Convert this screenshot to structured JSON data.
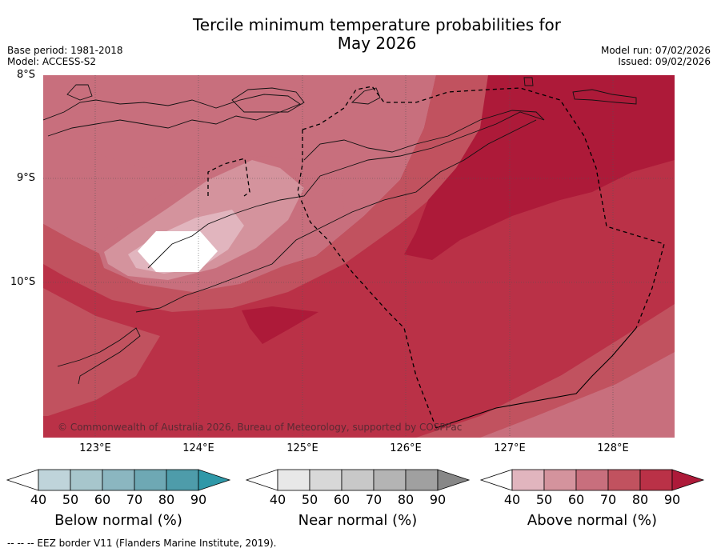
{
  "title_line1": "Tercile minimum temperature probabilities for",
  "title_line2": "May 2026",
  "base_period": "Base period: 1981-2018",
  "model": "Model: ACCESS-S2",
  "model_run": "Model run: 07/02/2026",
  "issued": "Issued: 09/02/2026",
  "lat_labels": [
    "8°S",
    "9°S",
    "10°S"
  ],
  "lon_labels": [
    "123°E",
    "124°E",
    "125°E",
    "126°E",
    "127°E",
    "128°E"
  ],
  "copyright": "© Commonwealth of Australia 2026, Bureau of Meteorology, supported by COSPPac",
  "colorbars": [
    {
      "label": "Below normal (%)",
      "ticks": [
        "40",
        "50",
        "60",
        "70",
        "80",
        "90"
      ],
      "colors": [
        "#bfd4da",
        "#a7c6cc",
        "#8bb6c0",
        "#6ea8b4",
        "#4e9caa"
      ],
      "arrow_color": "#2f98a8"
    },
    {
      "label": "Near normal (%)",
      "ticks": [
        "40",
        "50",
        "60",
        "70",
        "80",
        "90"
      ],
      "colors": [
        "#e8e8e8",
        "#d8d8d8",
        "#c8c8c8",
        "#b4b4b4",
        "#a0a0a0"
      ],
      "arrow_color": "#878787"
    },
    {
      "label": "Above normal (%)",
      "ticks": [
        "40",
        "50",
        "60",
        "70",
        "80",
        "90"
      ],
      "colors": [
        "#e1b5be",
        "#d4939d",
        "#c86f7d",
        "#c1525f",
        "#ba3147"
      ],
      "arrow_color": "#ad1a39"
    }
  ],
  "eez_note": "--  --  -- EEZ border V11 (Flanders Marine Institute, 2019).",
  "colors": {
    "above_60_70": "#c86f7d",
    "above_70_80": "#c1525f",
    "above_80_90": "#ba3147",
    "above_90": "#ad1a39"
  }
}
